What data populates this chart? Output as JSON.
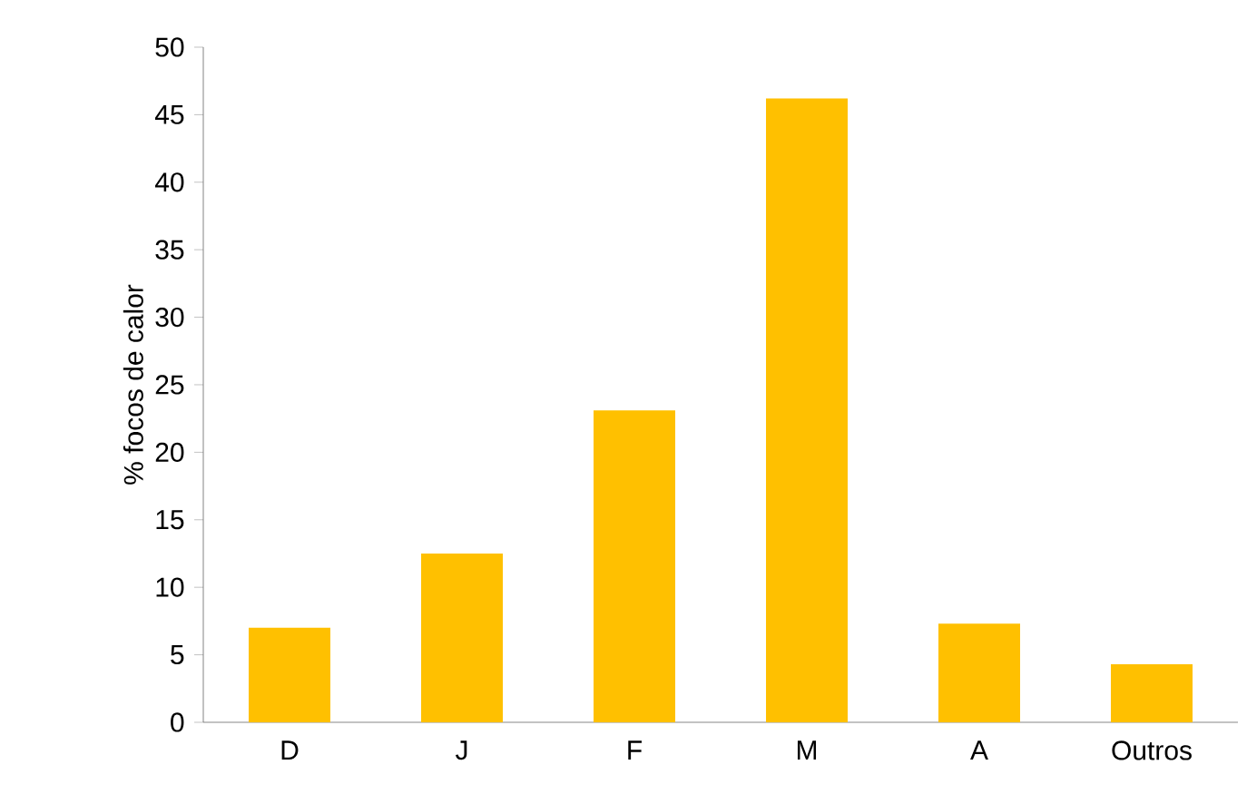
{
  "chart_data": {
    "type": "bar",
    "ylabel": "% focos de calor",
    "categories": [
      "D",
      "J",
      "F",
      "M",
      "A",
      "Outros"
    ],
    "values": [
      7.0,
      12.5,
      23.1,
      46.2,
      7.3,
      4.3
    ],
    "color": "#ffc000",
    "ylim": [
      0,
      50
    ],
    "yticks": [
      0,
      5,
      10,
      15,
      20,
      25,
      30,
      35,
      40,
      45,
      50
    ],
    "grid": false
  }
}
